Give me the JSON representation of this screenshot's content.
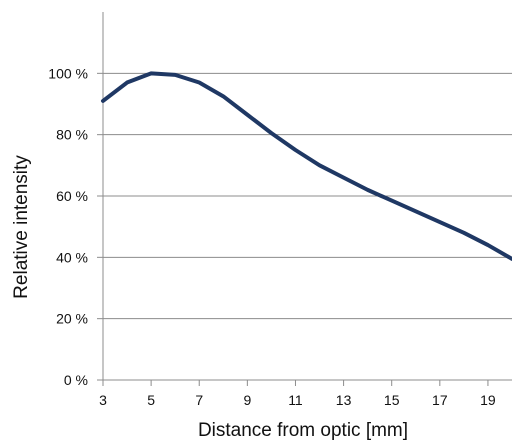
{
  "chart_data": {
    "type": "line",
    "title": "",
    "xlabel": "Distance from optic [mm]",
    "ylabel": "Relative intensity",
    "xlim": [
      3,
      20
    ],
    "ylim": [
      0,
      120
    ],
    "x_ticks": [
      3,
      5,
      7,
      9,
      11,
      13,
      15,
      17,
      19
    ],
    "y_ticks": [
      0,
      20,
      40,
      60,
      80,
      100
    ],
    "y_tick_labels": [
      "0 %",
      "20 %",
      "40 %",
      "60 %",
      "80 %",
      "100 %"
    ],
    "grid": "horizontal",
    "legend": "none",
    "series": [
      {
        "color": "#1f3864",
        "x": [
          3,
          4,
          5,
          6,
          7,
          8,
          9,
          10,
          11,
          12,
          13,
          14,
          15,
          16,
          17,
          18,
          19,
          20
        ],
        "y": [
          91,
          97,
          100,
          99.5,
          97,
          92.5,
          86.5,
          80.5,
          75,
          70,
          66,
          62,
          58.5,
          55,
          51.5,
          48,
          44,
          39.5
        ]
      }
    ]
  }
}
